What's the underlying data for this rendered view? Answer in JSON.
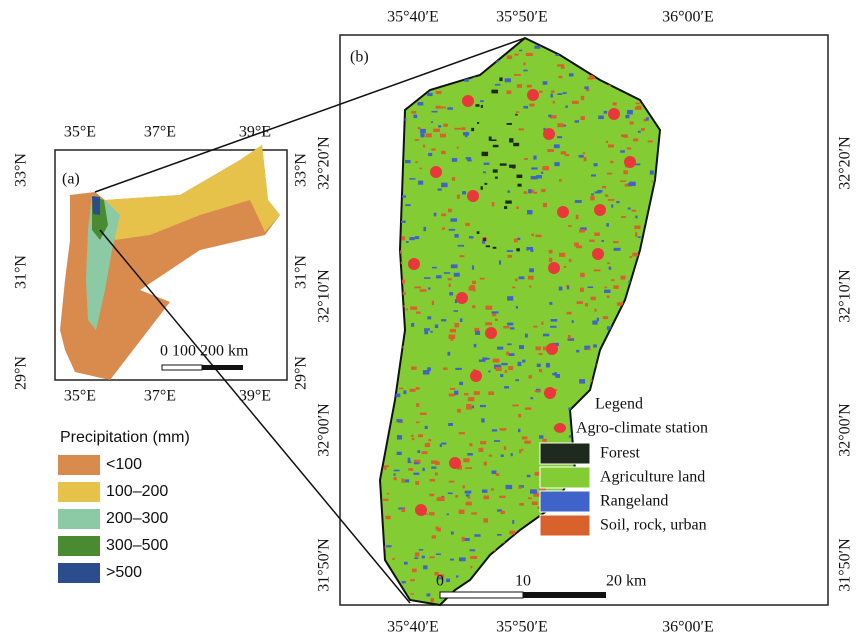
{
  "panel_a": {
    "label": "(a)",
    "top_ticks": [
      "35°E",
      "37°E",
      "39°E"
    ],
    "bottom_ticks": [
      "35°E",
      "37°E",
      "39°E"
    ],
    "left_ticks": [
      "33°N",
      "31°N",
      "29°N"
    ],
    "right_ticks": [
      "33°N",
      "31°N",
      "29°N"
    ],
    "scale_label": "0 100 200 km"
  },
  "precipitation_legend": {
    "title": "Precipitation (mm)",
    "items": [
      {
        "label": "<100",
        "color": "#d98b4e"
      },
      {
        "label": "100–200",
        "color": "#e6c24a"
      },
      {
        "label": "200–300",
        "color": "#8ccaa6"
      },
      {
        "label": "300–500",
        "color": "#4a8a30"
      },
      {
        "label": ">500",
        "color": "#2d4c8e"
      }
    ]
  },
  "panel_b": {
    "label": "(b)",
    "top_ticks": [
      "35°40′E",
      "35°50′E",
      "36°00′E"
    ],
    "bottom_ticks": [
      "35°40′E",
      "35°50′E",
      "36°00′E"
    ],
    "left_ticks": [
      "32°20′N",
      "32°10′N",
      "32°00′N",
      "31°50′N"
    ],
    "right_ticks": [
      "32°20′N",
      "32°10′N",
      "32°00′N",
      "31°50′N"
    ],
    "scale_labels": [
      "0",
      "10",
      "20 km"
    ],
    "legend": {
      "title": "Legend",
      "items": [
        {
          "label": "Agro-climate station",
          "color": "#e8383a"
        },
        {
          "label": "Forest",
          "color": "#1e2a1c"
        },
        {
          "label": "Agriculture land",
          "color": "#84cc34"
        },
        {
          "label": "Rangeland",
          "color": "#3f63c8"
        },
        {
          "label": "Soil, rock, urban",
          "color": "#d8612c"
        }
      ]
    }
  }
}
